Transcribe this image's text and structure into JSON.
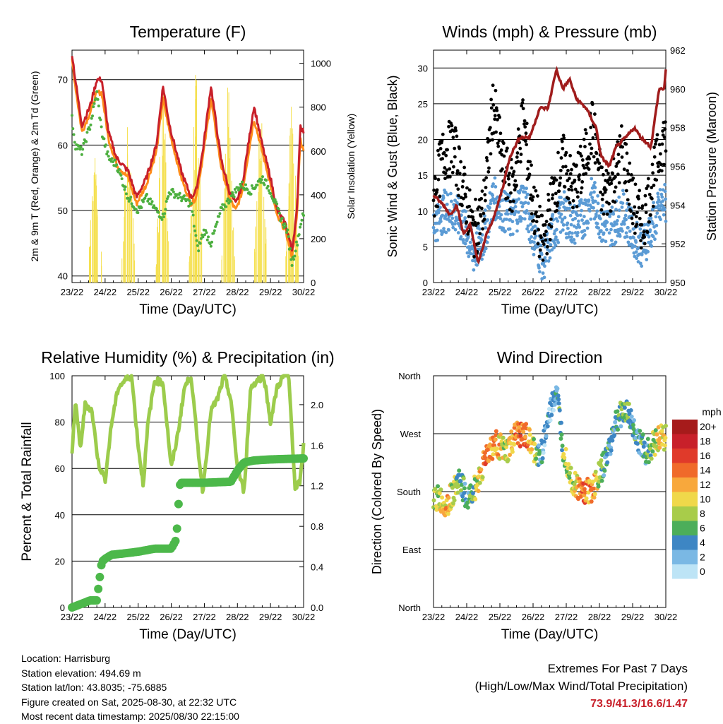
{
  "x_ticks": [
    "23/22",
    "24/22",
    "25/22",
    "26/22",
    "27/22",
    "28/22",
    "29/22",
    "30/22"
  ],
  "info": {
    "location": "Location: Harrisburg",
    "elevation": "Station elevation: 494.69 m",
    "latlon": "Station lat/lon: 43.8035; -75.6885",
    "created": "Figure created on Sat, 2025-08-30, at 22:32 UTC",
    "recent": "Most recent data timestamp: 2025/08/30 22:15:00"
  },
  "extremes": {
    "title": "Extremes For Past 7 Days",
    "subtitle": "(High/Low/Max Wind/Total Precipitation)",
    "values": "73.9/41.3/16.6/1.47"
  },
  "colors": {
    "temp_2m": "#ff8c1a",
    "temp_9m": "#c8202a",
    "dewpoint": "#4caf3f",
    "solar": "#f5e050",
    "sonic_wind": "#5b9bd5",
    "gust": "#000000",
    "pressure": "#a01c1c",
    "humidity": "#9ccc4c",
    "rainfall": "#4cb84a"
  },
  "chart_data": [
    {
      "type": "line",
      "title": "Temperature (F)",
      "xlabel": "Time (Day/UTC)",
      "ylabel": "2m & 9m T (Red, Orange) & 2m Td (Green)",
      "ylabel_right": "Solar Insolation (Yellow)",
      "ylim": [
        39,
        74.5
      ],
      "yticks": [
        40,
        50,
        60,
        70
      ],
      "ylim_right": [
        0,
        1060
      ],
      "yticks_right": [
        0,
        200,
        400,
        600,
        800,
        1000
      ],
      "x_days": [
        0,
        7
      ],
      "series": [
        {
          "key": "temp_9m",
          "x": [
            0,
            0.1,
            0.3,
            0.55,
            0.75,
            0.9,
            1.1,
            1.35,
            1.7,
            1.95,
            2.25,
            2.55,
            2.75,
            2.95,
            3.3,
            3.6,
            3.75,
            3.95,
            4.2,
            4.5,
            4.75,
            4.95,
            5.15,
            5.5,
            5.75,
            6.0,
            6.2,
            6.45,
            6.65,
            6.8,
            6.9,
            7.0
          ],
          "values": [
            74,
            70,
            63,
            66,
            70,
            70,
            62,
            58,
            56,
            52,
            55,
            60,
            69,
            63,
            56,
            52,
            53,
            59,
            69,
            58,
            53,
            51,
            54,
            66,
            60,
            55,
            50,
            48,
            44,
            50,
            63,
            62
          ]
        },
        {
          "key": "temp_2m",
          "x": [
            0,
            0.1,
            0.3,
            0.55,
            0.75,
            0.9,
            1.1,
            1.35,
            1.7,
            1.95,
            2.25,
            2.55,
            2.75,
            2.95,
            3.3,
            3.6,
            3.75,
            3.95,
            4.2,
            4.5,
            4.75,
            4.95,
            5.15,
            5.5,
            5.75,
            6.0,
            6.2,
            6.45,
            6.65,
            6.8,
            6.9,
            7.0
          ],
          "values": [
            73,
            69,
            62,
            65,
            68,
            68,
            61,
            57,
            55,
            51,
            54,
            59,
            67,
            62,
            55,
            51,
            52,
            58,
            67,
            57,
            52,
            50,
            53,
            64,
            59,
            54,
            49,
            47,
            43,
            49,
            61,
            59
          ]
        },
        {
          "key": "dewpoint",
          "x": [
            0,
            0.1,
            0.3,
            0.55,
            0.75,
            0.9,
            1.1,
            1.35,
            1.7,
            2.0,
            2.25,
            2.55,
            2.75,
            2.95,
            3.3,
            3.6,
            3.8,
            4.0,
            4.2,
            4.5,
            4.8,
            5.1,
            5.4,
            5.75,
            6.0,
            6.3,
            6.5,
            6.65,
            6.8,
            6.95
          ],
          "values": [
            64,
            60,
            59,
            63,
            68,
            62,
            58,
            57,
            52,
            50,
            52,
            50,
            49,
            53,
            52,
            51,
            44,
            47,
            45,
            50,
            52,
            54,
            53,
            55,
            53,
            49,
            47,
            42,
            45,
            49
          ]
        },
        {
          "key": "solar",
          "type": "daily_peaks",
          "peak_x": [
            0.7,
            1.7,
            2.75,
            3.75,
            4.72,
            5.7,
            6.65
          ],
          "peak_values": [
            720,
            860,
            1020,
            1040,
            950,
            880,
            940
          ]
        }
      ]
    },
    {
      "type": "scatter",
      "title": "Winds (mph) & Pressure (mb)",
      "xlabel": "Time (Day/UTC)",
      "ylabel": "Sonic Wind & Gust (Blue, Black)",
      "ylabel_right": "Station Pressure (Maroon)",
      "ylim": [
        0,
        32.5
      ],
      "yticks": [
        0,
        5,
        10,
        15,
        20,
        25,
        30
      ],
      "ylim_right": [
        950,
        962
      ],
      "yticks_right": [
        950,
        952,
        954,
        956,
        958,
        960,
        962
      ],
      "x_days": [
        0,
        7
      ],
      "series": [
        {
          "key": "gust",
          "x": [
            0,
            0.3,
            0.6,
            0.9,
            1.2,
            1.5,
            1.8,
            2.1,
            2.4,
            2.7,
            3.0,
            3.3,
            3.6,
            3.9,
            4.2,
            4.5,
            4.8,
            5.1,
            5.4,
            5.7,
            6.0,
            6.3,
            6.6,
            6.9
          ],
          "values": [
            12,
            18,
            19,
            13,
            7,
            10,
            25,
            16,
            13,
            23,
            11,
            5,
            12,
            17,
            13,
            16,
            22,
            12,
            14,
            19,
            11,
            8,
            14,
            20
          ]
        },
        {
          "key": "sonic_wind",
          "x": [
            0,
            0.3,
            0.6,
            0.9,
            1.2,
            1.5,
            1.8,
            2.1,
            2.4,
            2.7,
            3.0,
            3.3,
            3.6,
            3.9,
            4.2,
            4.5,
            4.8,
            5.1,
            5.4,
            5.7,
            6.0,
            6.3,
            6.6,
            6.9
          ],
          "values": [
            8,
            10,
            10,
            8,
            4,
            6,
            12,
            10,
            9,
            12,
            7,
            3,
            7,
            10,
            8,
            9,
            12,
            8,
            8,
            10,
            7,
            5,
            8,
            11
          ]
        },
        {
          "key": "pressure",
          "type": "line",
          "x": [
            0,
            0.3,
            0.5,
            0.7,
            0.9,
            1.1,
            1.35,
            1.6,
            1.85,
            2.1,
            2.3,
            2.6,
            2.9,
            3.2,
            3.45,
            3.7,
            3.9,
            4.1,
            4.3,
            4.6,
            4.9,
            5.05,
            5.3,
            5.5,
            5.8,
            6.05,
            6.25,
            6.55,
            6.8,
            6.95,
            7.0
          ],
          "values": [
            954.5,
            954.0,
            953.5,
            954.0,
            952.5,
            953.0,
            951.0,
            952.5,
            953.5,
            955.0,
            956.5,
            957.5,
            957.5,
            959.0,
            959.0,
            961.0,
            960.0,
            960.5,
            959.5,
            959.0,
            958.0,
            956.5,
            956.0,
            957.0,
            957.5,
            958.0,
            957.5,
            957.0,
            960.0,
            960.0,
            961.0
          ]
        }
      ]
    },
    {
      "type": "line",
      "title": "Relative Humidity (%) & Precipitation (in)",
      "xlabel": "Time (Day/UTC)",
      "ylabel": "Percent & Total Rainfall",
      "ylim": [
        0,
        100
      ],
      "yticks": [
        0,
        20,
        40,
        60,
        80,
        100
      ],
      "ylim_right": [
        0,
        2.285
      ],
      "yticks_right": [
        "0.0",
        "0.4",
        "0.8",
        "1.2",
        "1.6",
        "2.0"
      ],
      "x_days": [
        0,
        7
      ],
      "series": [
        {
          "key": "humidity",
          "x": [
            0,
            0.1,
            0.25,
            0.4,
            0.6,
            0.8,
            1.0,
            1.2,
            1.4,
            1.6,
            1.8,
            2.0,
            2.15,
            2.3,
            2.5,
            2.75,
            3.0,
            3.2,
            3.4,
            3.6,
            3.8,
            3.95,
            4.2,
            4.4,
            4.6,
            4.8,
            5.0,
            5.2,
            5.4,
            5.6,
            5.8,
            6.0,
            6.2,
            6.4,
            6.55,
            6.75,
            6.9,
            7.0
          ],
          "values": [
            65,
            90,
            68,
            88,
            85,
            62,
            55,
            80,
            95,
            98,
            100,
            70,
            53,
            80,
            98,
            97,
            60,
            75,
            95,
            100,
            70,
            50,
            85,
            90,
            100,
            90,
            60,
            50,
            95,
            98,
            100,
            80,
            95,
            100,
            100,
            50,
            55,
            70
          ]
        },
        {
          "key": "rainfall",
          "x": [
            0,
            0.4,
            0.55,
            0.75,
            0.8,
            0.9,
            1.0,
            1.2,
            1.5,
            2.0,
            2.5,
            3.0,
            3.15,
            3.2,
            3.25,
            3.3,
            4.0,
            4.8,
            5.0,
            5.2,
            5.5,
            6.0,
            7.0
          ],
          "values": [
            0.0,
            0.05,
            0.07,
            0.07,
            0.2,
            0.45,
            0.48,
            0.52,
            0.53,
            0.55,
            0.58,
            0.58,
            0.67,
            0.9,
            1.2,
            1.23,
            1.23,
            1.24,
            1.35,
            1.43,
            1.45,
            1.46,
            1.47
          ]
        }
      ]
    },
    {
      "type": "scatter",
      "title": "Wind Direction",
      "xlabel": "Time (Day/UTC)",
      "ylabel": "Direction (Colored By Speed)",
      "yticks": [
        "North",
        "East",
        "South",
        "West",
        "North"
      ],
      "ylim": [
        0,
        360
      ],
      "x_days": [
        0,
        7
      ],
      "colorbar": {
        "unit": "mph",
        "labels": [
          "20+",
          "18",
          "16",
          "14",
          "12",
          "10",
          "8",
          "6",
          "4",
          "2",
          "0"
        ],
        "colors": [
          "#a61b1b",
          "#c8202a",
          "#e03a2a",
          "#f06a2a",
          "#f8a83c",
          "#f0d84a",
          "#a8cc4a",
          "#4cae5a",
          "#3d86c4",
          "#7ab8e4",
          "#bde4f6"
        ]
      },
      "series": [
        {
          "key": "direction",
          "x": [
            0.1,
            0.4,
            0.8,
            1.0,
            1.3,
            1.6,
            1.9,
            2.2,
            2.5,
            2.8,
            3.2,
            3.5,
            3.7,
            3.9,
            4.2,
            4.5,
            4.8,
            5.2,
            5.5,
            5.8,
            6.1,
            6.4,
            6.8
          ],
          "values": [
            170,
            160,
            200,
            165,
            190,
            240,
            255,
            240,
            270,
            265,
            230,
            300,
            340,
            250,
            195,
            180,
            185,
            230,
            290,
            310,
            270,
            240,
            265
          ],
          "speeds": [
            8,
            12,
            5,
            4,
            8,
            14,
            12,
            8,
            14,
            14,
            4,
            2,
            3,
            8,
            8,
            14,
            12,
            4,
            5,
            6,
            4,
            5,
            10
          ]
        }
      ]
    }
  ]
}
